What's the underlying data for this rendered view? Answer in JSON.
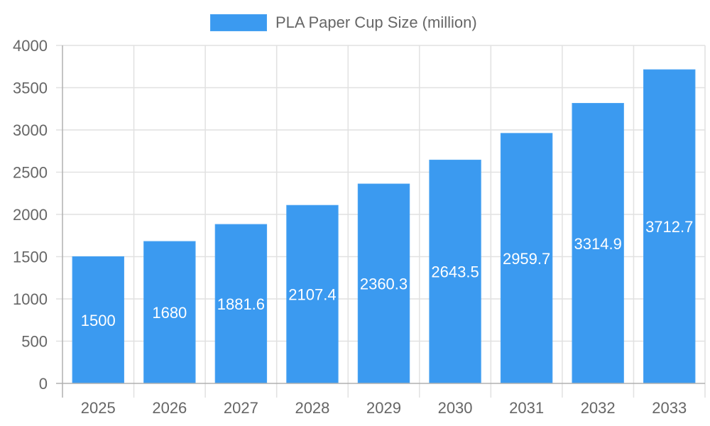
{
  "legend": {
    "label": "PLA Paper Cup Size (million)",
    "color": "#3b9af0"
  },
  "chart_data": {
    "type": "bar",
    "title": "",
    "xlabel": "",
    "ylabel": "",
    "categories": [
      "2025",
      "2026",
      "2027",
      "2028",
      "2029",
      "2030",
      "2031",
      "2032",
      "2033"
    ],
    "series": [
      {
        "name": "PLA Paper Cup Size (million)",
        "values": [
          1500,
          1680,
          1881.6,
          2107.4,
          2360.3,
          2643.5,
          2959.7,
          3314.9,
          3712.7
        ],
        "color": "#3b9af0"
      }
    ],
    "ylim": [
      0,
      4000
    ],
    "yticks": [
      0,
      500,
      1000,
      1500,
      2000,
      2500,
      3000,
      3500,
      4000
    ],
    "grid": true,
    "legend_position": "top",
    "data_labels": true
  }
}
